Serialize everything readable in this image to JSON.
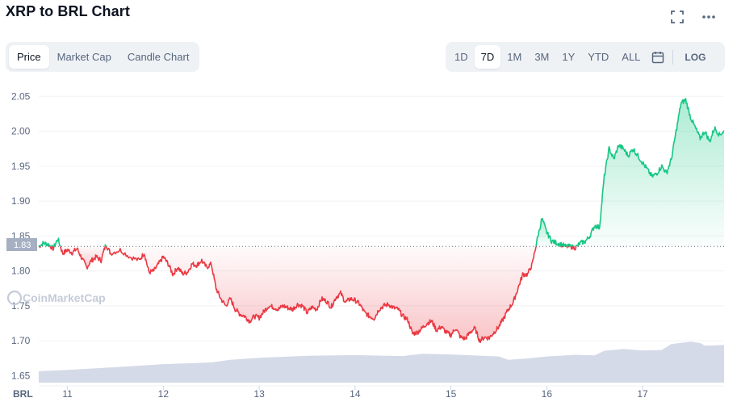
{
  "header": {
    "title": "XRP to BRL Chart",
    "icons": [
      "fullscreen-icon",
      "more-options-icon"
    ]
  },
  "left_tabs": {
    "items": [
      {
        "label": "Price",
        "active": true
      },
      {
        "label": "Market Cap",
        "active": false
      },
      {
        "label": "Candle Chart",
        "active": false
      }
    ]
  },
  "range_tabs": {
    "items": [
      {
        "label": "1D",
        "active": false
      },
      {
        "label": "7D",
        "active": true
      },
      {
        "label": "1M",
        "active": false
      },
      {
        "label": "3M",
        "active": false
      },
      {
        "label": "1Y",
        "active": false
      },
      {
        "label": "YTD",
        "active": false
      },
      {
        "label": "ALL",
        "active": false
      }
    ],
    "calendar_icon": "calendar-icon",
    "log_label": "LOG"
  },
  "watermark": "CoinMarketCap",
  "colors": {
    "up": "#16c784",
    "down": "#ea3943",
    "volume": "#cfd6e4",
    "grid": "#eff2f5",
    "current_badge": "#a6b0c3"
  },
  "chart_data": {
    "type": "line",
    "title": "XRP to BRL Chart",
    "currency_label": "BRL",
    "x_tick_labels": [
      "11",
      "12",
      "13",
      "14",
      "15",
      "16",
      "17"
    ],
    "y_tick_labels": [
      "2.05",
      "2.00",
      "1.95",
      "1.90",
      "1.85",
      "1.80",
      "1.75",
      "1.70",
      "1.65"
    ],
    "ylim": [
      1.64,
      2.07
    ],
    "baseline_price": 1.835,
    "baseline_label": "1.83",
    "grid": true,
    "series": [
      {
        "values_note": "XRP price in BRL; x in days (day number of month), y in BRL",
        "points": [
          [
            10.7,
            1.835
          ],
          [
            10.75,
            1.84
          ],
          [
            10.8,
            1.838
          ],
          [
            10.85,
            1.832
          ],
          [
            10.9,
            1.846
          ],
          [
            10.95,
            1.825
          ],
          [
            11.0,
            1.83
          ],
          [
            11.05,
            1.826
          ],
          [
            11.1,
            1.832
          ],
          [
            11.15,
            1.818
          ],
          [
            11.2,
            1.805
          ],
          [
            11.25,
            1.815
          ],
          [
            11.3,
            1.82
          ],
          [
            11.35,
            1.815
          ],
          [
            11.4,
            1.838
          ],
          [
            11.45,
            1.825
          ],
          [
            11.55,
            1.83
          ],
          [
            11.65,
            1.82
          ],
          [
            11.75,
            1.815
          ],
          [
            11.8,
            1.826
          ],
          [
            11.85,
            1.798
          ],
          [
            11.9,
            1.8
          ],
          [
            11.95,
            1.81
          ],
          [
            12.0,
            1.82
          ],
          [
            12.05,
            1.81
          ],
          [
            12.1,
            1.795
          ],
          [
            12.15,
            1.805
          ],
          [
            12.2,
            1.796
          ],
          [
            12.25,
            1.798
          ],
          [
            12.3,
            1.81
          ],
          [
            12.35,
            1.808
          ],
          [
            12.4,
            1.815
          ],
          [
            12.45,
            1.805
          ],
          [
            12.5,
            1.81
          ],
          [
            12.55,
            1.775
          ],
          [
            12.6,
            1.76
          ],
          [
            12.65,
            1.75
          ],
          [
            12.7,
            1.76
          ],
          [
            12.75,
            1.745
          ],
          [
            12.8,
            1.738
          ],
          [
            12.85,
            1.735
          ],
          [
            12.9,
            1.728
          ],
          [
            12.95,
            1.735
          ],
          [
            13.0,
            1.733
          ],
          [
            13.05,
            1.742
          ],
          [
            13.1,
            1.75
          ],
          [
            13.15,
            1.748
          ],
          [
            13.2,
            1.745
          ],
          [
            13.25,
            1.75
          ],
          [
            13.3,
            1.747
          ],
          [
            13.35,
            1.745
          ],
          [
            13.4,
            1.752
          ],
          [
            13.45,
            1.75
          ],
          [
            13.5,
            1.74
          ],
          [
            13.55,
            1.748
          ],
          [
            13.6,
            1.745
          ],
          [
            13.65,
            1.76
          ],
          [
            13.7,
            1.757
          ],
          [
            13.75,
            1.748
          ],
          [
            13.8,
            1.762
          ],
          [
            13.85,
            1.768
          ],
          [
            13.9,
            1.755
          ],
          [
            13.95,
            1.76
          ],
          [
            14.0,
            1.758
          ],
          [
            14.05,
            1.752
          ],
          [
            14.1,
            1.74
          ],
          [
            14.15,
            1.735
          ],
          [
            14.2,
            1.732
          ],
          [
            14.25,
            1.745
          ],
          [
            14.3,
            1.75
          ],
          [
            14.35,
            1.752
          ],
          [
            14.4,
            1.747
          ],
          [
            14.45,
            1.745
          ],
          [
            14.5,
            1.735
          ],
          [
            14.55,
            1.73
          ],
          [
            14.6,
            1.71
          ],
          [
            14.65,
            1.712
          ],
          [
            14.7,
            1.718
          ],
          [
            14.75,
            1.725
          ],
          [
            14.8,
            1.728
          ],
          [
            14.85,
            1.715
          ],
          [
            14.9,
            1.72
          ],
          [
            14.95,
            1.712
          ],
          [
            15.0,
            1.708
          ],
          [
            15.05,
            1.718
          ],
          [
            15.1,
            1.705
          ],
          [
            15.15,
            1.703
          ],
          [
            15.2,
            1.712
          ],
          [
            15.25,
            1.718
          ],
          [
            15.3,
            1.7
          ],
          [
            15.35,
            1.705
          ],
          [
            15.4,
            1.704
          ],
          [
            15.45,
            1.712
          ],
          [
            15.5,
            1.72
          ],
          [
            15.55,
            1.732
          ],
          [
            15.6,
            1.745
          ],
          [
            15.65,
            1.755
          ],
          [
            15.7,
            1.775
          ],
          [
            15.75,
            1.795
          ],
          [
            15.8,
            1.795
          ],
          [
            15.85,
            1.81
          ],
          [
            15.9,
            1.845
          ],
          [
            15.95,
            1.875
          ],
          [
            16.0,
            1.855
          ],
          [
            16.05,
            1.843
          ],
          [
            16.1,
            1.84
          ],
          [
            16.15,
            1.838
          ],
          [
            16.2,
            1.835
          ],
          [
            16.25,
            1.835
          ],
          [
            16.3,
            1.833
          ],
          [
            16.35,
            1.84
          ],
          [
            16.4,
            1.842
          ],
          [
            16.45,
            1.85
          ],
          [
            16.5,
            1.865
          ],
          [
            16.55,
            1.862
          ],
          [
            16.6,
            1.935
          ],
          [
            16.65,
            1.975
          ],
          [
            16.7,
            1.96
          ],
          [
            16.75,
            1.98
          ],
          [
            16.8,
            1.975
          ],
          [
            16.85,
            1.965
          ],
          [
            16.9,
            1.975
          ],
          [
            16.95,
            1.965
          ],
          [
            17.0,
            1.955
          ],
          [
            17.05,
            1.945
          ],
          [
            17.1,
            1.935
          ],
          [
            17.15,
            1.94
          ],
          [
            17.2,
            1.95
          ],
          [
            17.25,
            1.94
          ],
          [
            17.3,
            1.96
          ],
          [
            17.35,
            2.0
          ],
          [
            17.4,
            2.04
          ],
          [
            17.45,
            2.045
          ],
          [
            17.5,
            2.02
          ],
          [
            17.55,
            2.005
          ],
          [
            17.6,
            1.99
          ],
          [
            17.65,
            2.0
          ],
          [
            17.7,
            1.985
          ],
          [
            17.75,
            2.005
          ],
          [
            17.8,
            1.995
          ],
          [
            17.85,
            2.0
          ]
        ]
      }
    ],
    "volume_series": {
      "points": [
        [
          10.7,
          0.34
        ],
        [
          11.0,
          0.38
        ],
        [
          11.5,
          0.46
        ],
        [
          12.0,
          0.55
        ],
        [
          12.5,
          0.6
        ],
        [
          12.7,
          0.68
        ],
        [
          13.0,
          0.74
        ],
        [
          13.5,
          0.8
        ],
        [
          14.0,
          0.82
        ],
        [
          14.5,
          0.79
        ],
        [
          14.7,
          0.86
        ],
        [
          15.0,
          0.84
        ],
        [
          15.5,
          0.78
        ],
        [
          15.6,
          0.68
        ],
        [
          15.8,
          0.72
        ],
        [
          16.0,
          0.78
        ],
        [
          16.3,
          0.83
        ],
        [
          16.5,
          0.81
        ],
        [
          16.6,
          0.95
        ],
        [
          16.8,
          1.0
        ],
        [
          17.0,
          0.96
        ],
        [
          17.2,
          0.97
        ],
        [
          17.3,
          1.15
        ],
        [
          17.5,
          1.22
        ],
        [
          17.6,
          1.18
        ],
        [
          17.65,
          1.1
        ],
        [
          17.85,
          1.12
        ]
      ]
    }
  }
}
